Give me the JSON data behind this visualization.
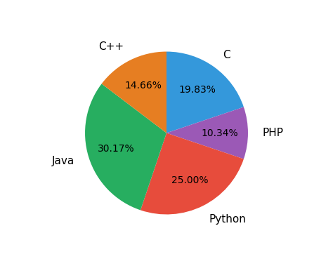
{
  "labels": [
    "C",
    "PHP",
    "Python",
    "Java",
    "C++"
  ],
  "values": [
    19.83,
    10.34,
    25.0,
    30.17,
    14.66
  ],
  "colors": [
    "#3498db",
    "#9b59b6",
    "#e74c3c",
    "#27ae60",
    "#e67e22"
  ],
  "startangle": 90,
  "label_distance": 1.18,
  "pctdistance": 0.65,
  "fontsize_labels": 11,
  "fontsize_pct": 10,
  "figsize": [
    4.74,
    3.79
  ],
  "dpi": 100
}
